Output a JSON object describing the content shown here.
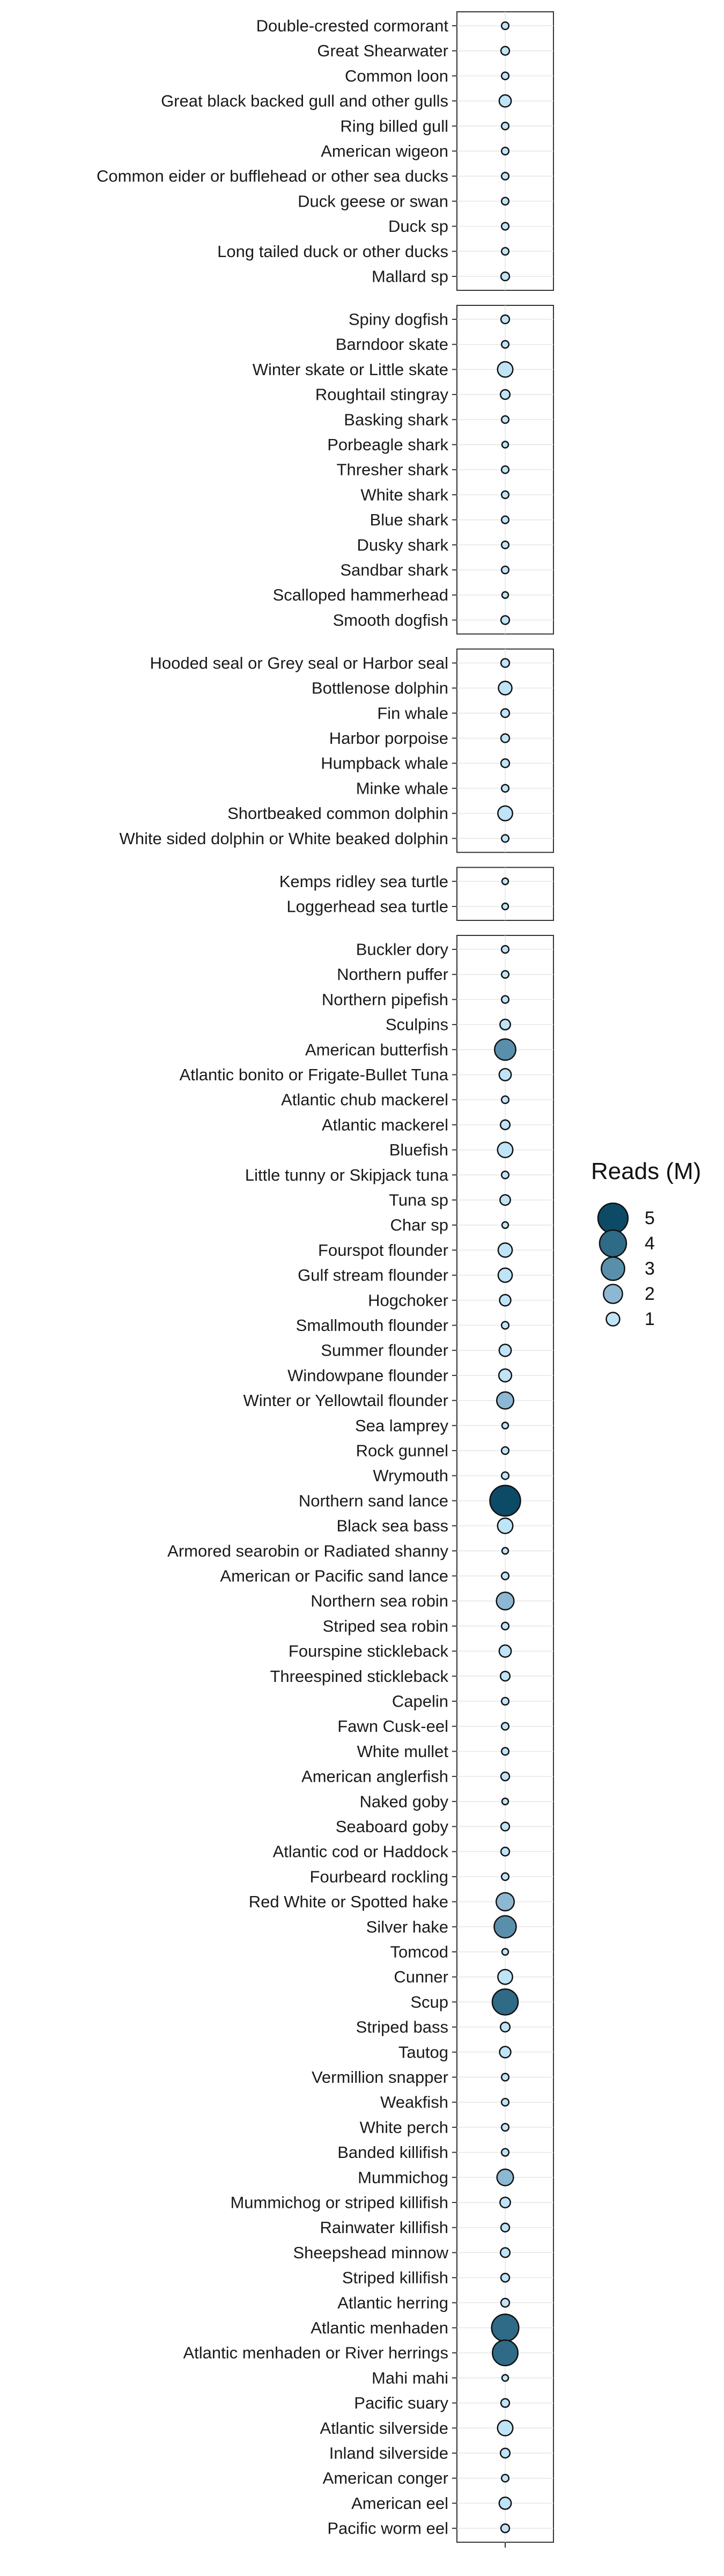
{
  "chart_data": {
    "type": "scatter",
    "encoding": "bubble size and fill colour = reads",
    "x": [
      ""
    ],
    "xlabel": "",
    "ylabel": "",
    "grid": true,
    "legend_position": "right",
    "legend": {
      "title": "Reads (M)",
      "items": [
        5,
        4,
        3,
        2,
        1
      ],
      "colors": [
        "#0d4a66",
        "#2f6a86",
        "#5a8fac",
        "#8cb8d4",
        "#bfe4f8"
      ]
    },
    "panels": [
      {
        "categories": [
          "Double-crested cormorant",
          "Great Shearwater",
          "Common loon",
          "Great black backed gull and other gulls",
          "Ring billed gull",
          "American wigeon",
          "Common eider or bufflehead or other sea ducks",
          "Duck geese or swan",
          "Duck sp",
          "Long tailed duck or other ducks",
          "Mallard sp"
        ],
        "values": [
          0.3,
          0.4,
          0.3,
          0.8,
          0.3,
          0.3,
          0.3,
          0.3,
          0.3,
          0.3,
          0.4
        ]
      },
      {
        "categories": [
          "Spiny dogfish",
          "Barndoor skate",
          "Winter skate or Little skate",
          "Roughtail stingray",
          "Basking shark",
          "Porbeagle shark",
          "Thresher shark",
          "White shark",
          "Blue shark",
          "Dusky shark",
          "Sandbar shark",
          "Scalloped hammerhead",
          "Smooth dogfish"
        ],
        "values": [
          0.4,
          0.3,
          1.3,
          0.5,
          0.3,
          0.2,
          0.3,
          0.3,
          0.3,
          0.3,
          0.3,
          0.2,
          0.4
        ]
      },
      {
        "categories": [
          "Hooded seal or Grey seal or Harbor seal",
          "Bottlenose dolphin",
          "Fin whale",
          "Harbor porpoise",
          "Humpback whale",
          "Minke whale",
          "Shortbeaked common dolphin",
          "White sided dolphin or White beaked dolphin"
        ],
        "values": [
          0.4,
          1.0,
          0.4,
          0.4,
          0.4,
          0.3,
          1.2,
          0.3
        ]
      },
      {
        "categories": [
          "Kemps ridley sea turtle",
          "Loggerhead sea turtle"
        ],
        "values": [
          0.2,
          0.2
        ]
      },
      {
        "categories": [
          "Buckler dory",
          "Northern puffer",
          "Northern pipefish",
          "Sculpins",
          "American butterfish",
          "Atlantic bonito or Frigate-Bullet Tuna",
          "Atlantic chub mackerel",
          "Atlantic mackerel",
          "Bluefish",
          "Little tunny or Skipjack tuna",
          "Tuna sp",
          "Char sp",
          "Fourspot flounder",
          "Gulf stream flounder",
          "Hogchoker",
          "Smallmouth flounder",
          "Summer flounder",
          "Windowpane flounder",
          "Winter or Yellowtail flounder",
          "Sea lamprey",
          "Rock gunnel",
          "Wrymouth",
          "Northern sand lance",
          "Black sea bass",
          "Armored searobin or Radiated shanny",
          "American or Pacific sand lance",
          "Northern sea robin",
          "Striped sea robin",
          "Fourspine stickleback",
          "Threespined stickleback",
          "Capelin",
          "Fawn Cusk-eel",
          "White mullet",
          "American anglerfish",
          "Naked goby",
          "Seaboard goby",
          "Atlantic cod or Haddock",
          "Fourbeard rockling",
          "Red White or Spotted hake",
          "Silver hake",
          "Tomcod",
          "Cunner",
          "Scup",
          "Striped bass",
          "Tautog",
          "Vermillion snapper",
          "Weakfish",
          "White perch",
          "Banded killifish",
          "Mummichog",
          "Mummichog or striped killifish",
          "Rainwater killifish",
          "Sheepshead minnow",
          "Striped killifish",
          "Atlantic herring",
          "Atlantic menhaden",
          "Atlantic menhaden or River herrings",
          "Mahi mahi",
          "Pacific suary",
          "Atlantic silverside",
          "Inland silverside",
          "American conger",
          "American eel",
          "Pacific worm eel"
        ],
        "values": [
          0.3,
          0.3,
          0.3,
          0.6,
          2.5,
          0.8,
          0.3,
          0.5,
          1.3,
          0.3,
          0.6,
          0.2,
          1.1,
          1.1,
          0.7,
          0.3,
          0.8,
          0.9,
          1.6,
          0.2,
          0.3,
          0.3,
          5.2,
          1.3,
          0.2,
          0.3,
          1.7,
          0.3,
          0.8,
          0.5,
          0.3,
          0.3,
          0.3,
          0.4,
          0.2,
          0.4,
          0.4,
          0.3,
          1.8,
          2.7,
          0.2,
          1.2,
          3.7,
          0.5,
          0.7,
          0.3,
          0.3,
          0.3,
          0.3,
          1.5,
          0.6,
          0.4,
          0.5,
          0.4,
          0.4,
          4.1,
          3.6,
          0.2,
          0.4,
          1.3,
          0.5,
          0.3,
          0.8,
          0.4
        ]
      }
    ]
  }
}
